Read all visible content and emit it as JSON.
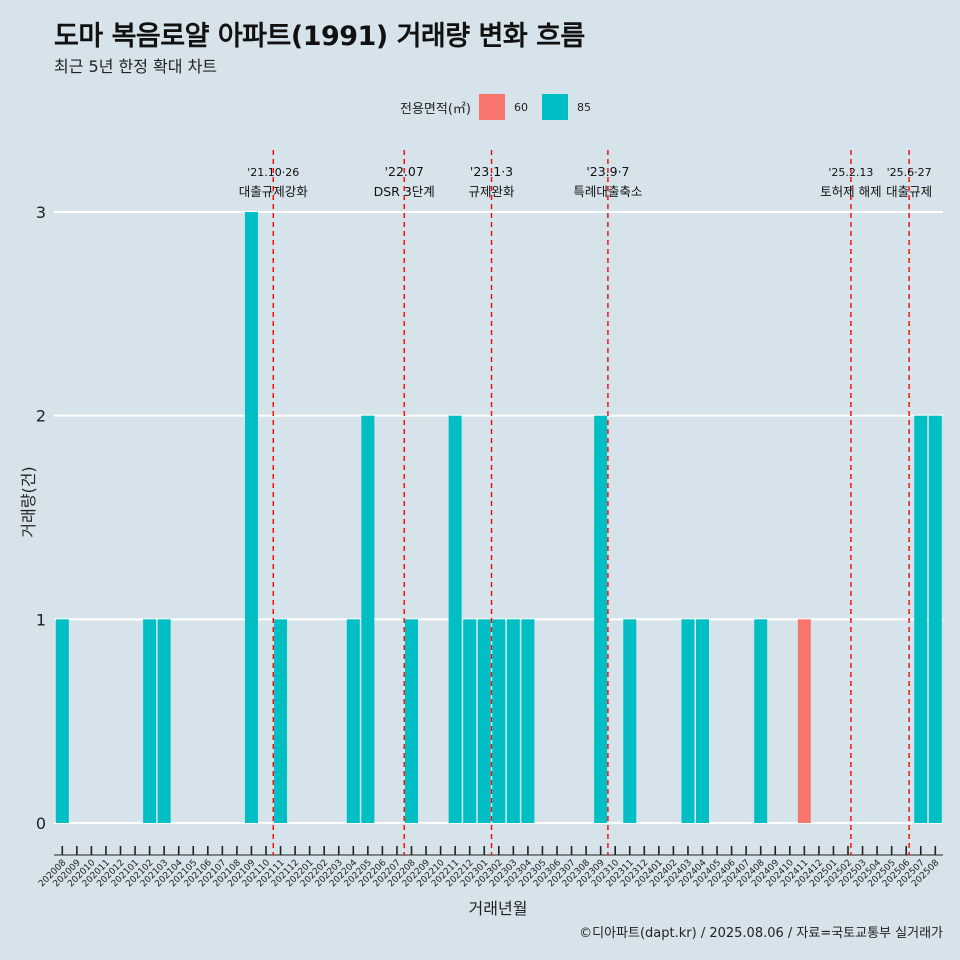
{
  "title": "도마 복음로얄 아파트(1991) 거래량 변화 흐름",
  "subtitle": "최근 5년 한정 확대 차트",
  "caption": "©디아파트(dapt.kr) / 2025.08.06 / 자료=국토교통부 실거래가",
  "legend": {
    "title": "전용면적(㎡)",
    "items": [
      {
        "label": "60",
        "color": "#f8766d"
      },
      {
        "label": "85",
        "color": "#00bfc4"
      }
    ]
  },
  "chart_data": {
    "type": "bar",
    "stacked": true,
    "xlabel": "거래년월",
    "ylabel": "거래량(건)",
    "ylim": [
      0,
      3
    ],
    "yticks": [
      0,
      1,
      2,
      3
    ],
    "grid": true,
    "legend_position": "top",
    "categories": [
      "202008",
      "202009",
      "202010",
      "202011",
      "202012",
      "202101",
      "202102",
      "202103",
      "202104",
      "202105",
      "202106",
      "202107",
      "202108",
      "202109",
      "202110",
      "202111",
      "202112",
      "202201",
      "202202",
      "202203",
      "202204",
      "202205",
      "202206",
      "202207",
      "202208",
      "202209",
      "202210",
      "202211",
      "202212",
      "202301",
      "202302",
      "202303",
      "202304",
      "202305",
      "202306",
      "202307",
      "202308",
      "202309",
      "202310",
      "202311",
      "202312",
      "202401",
      "202402",
      "202403",
      "202404",
      "202405",
      "202406",
      "202407",
      "202408",
      "202409",
      "202410",
      "202411",
      "202412",
      "202501",
      "202502",
      "202503",
      "202504",
      "202505",
      "202506",
      "202507",
      "202508"
    ],
    "series": [
      {
        "name": "60",
        "color": "#f8766d",
        "values": [
          0,
          0,
          0,
          0,
          0,
          0,
          0,
          0,
          0,
          0,
          0,
          0,
          0,
          0,
          0,
          0,
          0,
          0,
          0,
          0,
          0,
          0,
          0,
          0,
          0,
          0,
          0,
          0,
          0,
          0,
          0,
          0,
          0,
          0,
          0,
          0,
          0,
          0,
          0,
          0,
          0,
          0,
          0,
          0,
          0,
          0,
          0,
          0,
          0,
          0,
          0,
          1,
          0,
          0,
          0,
          0,
          0,
          0,
          0,
          0,
          0
        ]
      },
      {
        "name": "85",
        "color": "#00bfc4",
        "values": [
          1,
          0,
          0,
          0,
          0,
          0,
          1,
          1,
          0,
          0,
          0,
          0,
          0,
          3,
          0,
          1,
          0,
          0,
          0,
          0,
          1,
          2,
          0,
          0,
          1,
          0,
          0,
          2,
          1,
          1,
          1,
          1,
          1,
          0,
          0,
          0,
          0,
          2,
          0,
          1,
          0,
          0,
          0,
          1,
          1,
          0,
          0,
          0,
          1,
          0,
          0,
          0,
          0,
          0,
          0,
          0,
          0,
          0,
          0,
          2,
          2
        ]
      }
    ],
    "annotations": [
      {
        "index": 14.5,
        "date": "'21.10·26",
        "text": "대출규제강화"
      },
      {
        "index": 23.5,
        "date": "'22.07",
        "text": "DSR 3단계"
      },
      {
        "index": 29.5,
        "date": "'23.1·3",
        "text": "규제완화"
      },
      {
        "index": 37.5,
        "date": "'23.9·7",
        "text": "특례대출축소"
      },
      {
        "index": 54.2,
        "date": "'25.2.13",
        "text": "토허제 해제"
      },
      {
        "index": 58.2,
        "date": "'25.6·27",
        "text": "대출규제"
      }
    ]
  }
}
